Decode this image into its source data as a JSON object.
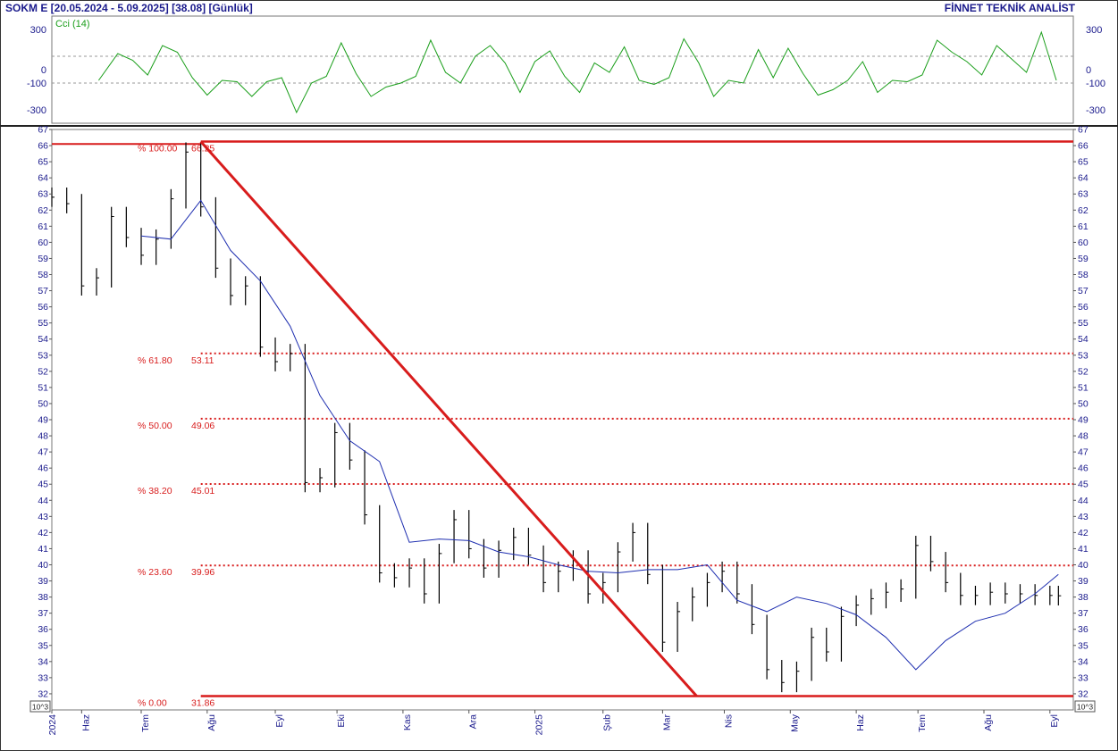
{
  "header": {
    "title": "SOKM  E  [20.05.2024 - 5.09.2025]  [38.08]  [Günlük]",
    "brand": "FİNNET TEKNİK ANALİST"
  },
  "colors": {
    "price_bars": "#000000",
    "moving_average": "#1f2fb0",
    "fibonacci": "#d81c1c",
    "cci": "#1a9e1a",
    "axis_text": "#1a1a8c"
  },
  "unit_badge": "10^3",
  "chart_data": [
    {
      "type": "line",
      "title": "Cci (14)",
      "ylim": [
        -400,
        400
      ],
      "yticks": [
        300,
        0,
        -100,
        -300
      ],
      "reference_lines": [
        100,
        -100
      ],
      "x": [
        "2024-06-11",
        "2024-06-20",
        "2024-06-27",
        "2024-07-04",
        "2024-07-11",
        "2024-07-18",
        "2024-07-25",
        "2024-08-01",
        "2024-08-08",
        "2024-08-15",
        "2024-08-22",
        "2024-08-29",
        "2024-09-05",
        "2024-09-12",
        "2024-09-19",
        "2024-09-26",
        "2024-10-03",
        "2024-10-10",
        "2024-10-17",
        "2024-10-24",
        "2024-10-31",
        "2024-11-07",
        "2024-11-14",
        "2024-11-21",
        "2024-11-28",
        "2024-12-05",
        "2024-12-12",
        "2024-12-19",
        "2024-12-26",
        "2025-01-02",
        "2025-01-09",
        "2025-01-16",
        "2025-01-23",
        "2025-01-30",
        "2025-02-06",
        "2025-02-13",
        "2025-02-20",
        "2025-02-27",
        "2025-03-06",
        "2025-03-13",
        "2025-03-20",
        "2025-03-27",
        "2025-04-03",
        "2025-04-10",
        "2025-04-17",
        "2025-04-24",
        "2025-05-01",
        "2025-05-08",
        "2025-05-15",
        "2025-05-22",
        "2025-05-29",
        "2025-06-05",
        "2025-06-12",
        "2025-06-19",
        "2025-06-26",
        "2025-07-03",
        "2025-07-10",
        "2025-07-17",
        "2025-07-24",
        "2025-07-31",
        "2025-08-07",
        "2025-08-14",
        "2025-08-21",
        "2025-08-28",
        "2025-09-04"
      ],
      "values": [
        -80,
        120,
        70,
        -40,
        180,
        130,
        -60,
        -190,
        -80,
        -90,
        -200,
        -90,
        -60,
        -320,
        -100,
        -50,
        200,
        -30,
        -200,
        -130,
        -100,
        -50,
        220,
        -20,
        -100,
        100,
        180,
        50,
        -170,
        60,
        140,
        -50,
        -170,
        50,
        -20,
        170,
        -80,
        -110,
        -60,
        230,
        50,
        -200,
        -80,
        -100,
        150,
        -60,
        160,
        -30,
        -190,
        -150,
        -80,
        60,
        -170,
        -80,
        -90,
        -40,
        220,
        130,
        60,
        -40,
        180,
        80,
        -20,
        280,
        -80
      ]
    },
    {
      "type": "line",
      "title": "",
      "ylabel": "",
      "ylim": [
        31,
        67
      ],
      "yticks": [
        32,
        33,
        34,
        35,
        36,
        37,
        38,
        39,
        40,
        41,
        42,
        43,
        44,
        45,
        46,
        47,
        48,
        49,
        50,
        51,
        52,
        53,
        54,
        55,
        56,
        57,
        58,
        59,
        60,
        61,
        62,
        63,
        64,
        65,
        66,
        67
      ],
      "x_ticks": [
        "2024",
        "Haz",
        "Tem",
        "Ağu",
        "Eyl",
        "Eki",
        "Kas",
        "Ara",
        "2025",
        "Şub",
        "Mar",
        "Nis",
        "May",
        "Haz",
        "Tem",
        "Ağu",
        "Eyl"
      ],
      "series": [
        {
          "style": "ohlc-bars",
          "x": [
            "2024-05-20",
            "2024-05-27",
            "2024-06-03",
            "2024-06-10",
            "2024-06-17",
            "2024-06-24",
            "2024-07-01",
            "2024-07-08",
            "2024-07-15",
            "2024-07-22",
            "2024-07-29",
            "2024-08-05",
            "2024-08-12",
            "2024-08-19",
            "2024-08-26",
            "2024-09-02",
            "2024-09-09",
            "2024-09-16",
            "2024-09-23",
            "2024-09-30",
            "2024-10-07",
            "2024-10-14",
            "2024-10-21",
            "2024-10-28",
            "2024-11-04",
            "2024-11-11",
            "2024-11-18",
            "2024-11-25",
            "2024-12-02",
            "2024-12-09",
            "2024-12-16",
            "2024-12-23",
            "2024-12-30",
            "2025-01-06",
            "2025-01-13",
            "2025-01-20",
            "2025-01-27",
            "2025-02-03",
            "2025-02-10",
            "2025-02-17",
            "2025-02-24",
            "2025-03-03",
            "2025-03-10",
            "2025-03-17",
            "2025-03-24",
            "2025-03-31",
            "2025-04-07",
            "2025-04-14",
            "2025-04-21",
            "2025-04-28",
            "2025-05-05",
            "2025-05-12",
            "2025-05-19",
            "2025-05-26",
            "2025-06-02",
            "2025-06-09",
            "2025-06-16",
            "2025-06-23",
            "2025-06-30",
            "2025-07-07",
            "2025-07-14",
            "2025-07-21",
            "2025-07-28",
            "2025-08-04",
            "2025-08-11",
            "2025-08-18",
            "2025-08-25",
            "2025-09-01",
            "2025-09-05"
          ],
          "close": [
            62.8,
            62.4,
            57.3,
            57.8,
            61.6,
            60.3,
            59.2,
            60.2,
            62.7,
            65.6,
            62.2,
            58.4,
            56.7,
            57.3,
            53.5,
            52.6,
            53.1,
            45.1,
            45.4,
            48.2,
            46.5,
            43.1,
            39.5,
            39.2,
            39.8,
            38.2,
            40.7,
            42.8,
            41.0,
            39.8,
            40.9,
            41.7,
            40.6,
            38.9,
            39.6,
            40.3,
            38.2,
            38.9,
            40.8,
            42.0,
            39.4,
            35.2,
            37.1,
            38.0,
            38.9,
            39.6,
            38.2,
            36.3,
            33.5,
            32.7,
            33.4,
            35.5,
            34.6,
            36.8,
            37.5,
            37.9,
            38.3,
            38.5,
            41.2,
            40.2,
            38.9,
            38.1,
            38.1,
            38.3,
            38.2,
            38.2,
            38.1,
            38.1,
            38.08
          ]
        },
        {
          "name": "",
          "style": "moving-average",
          "x": [
            "2024-07-01",
            "2024-07-15",
            "2024-07-29",
            "2024-08-12",
            "2024-08-26",
            "2024-09-09",
            "2024-09-23",
            "2024-10-07",
            "2024-10-21",
            "2024-11-04",
            "2024-11-18",
            "2024-12-02",
            "2024-12-16",
            "2024-12-30",
            "2025-01-13",
            "2025-01-27",
            "2025-02-10",
            "2025-02-24",
            "2025-03-10",
            "2025-03-24",
            "2025-04-07",
            "2025-04-21",
            "2025-05-05",
            "2025-05-19",
            "2025-06-02",
            "2025-06-16",
            "2025-06-30",
            "2025-07-14",
            "2025-07-28",
            "2025-08-11",
            "2025-08-25",
            "2025-09-05"
          ],
          "values": [
            60.4,
            60.2,
            62.6,
            59.5,
            57.6,
            54.8,
            50.5,
            47.7,
            46.4,
            41.4,
            41.6,
            41.5,
            40.8,
            40.5,
            40.0,
            39.6,
            39.5,
            39.7,
            39.7,
            40.0,
            37.8,
            37.1,
            38.0,
            37.6,
            36.9,
            35.5,
            33.5,
            35.3,
            36.5,
            37.0,
            38.2,
            39.4
          ]
        }
      ],
      "trend_line": {
        "from": {
          "x": "2024-07-29",
          "y": 66.25
        },
        "to": {
          "x": "2025-03-19",
          "y": 31.86
        }
      },
      "fibonacci": [
        {
          "percent": "% 100.00",
          "value": "66.25",
          "level": 66.25
        },
        {
          "percent": "% 61.80",
          "value": "53.11",
          "level": 53.11
        },
        {
          "percent": "% 50.00",
          "value": "49.06",
          "level": 49.06
        },
        {
          "percent": "% 38.20",
          "value": "45.01",
          "level": 45.01
        },
        {
          "percent": "% 23.60",
          "value": "39.96",
          "level": 39.96
        },
        {
          "percent": "% 0.00",
          "value": "31.86",
          "level": 31.86
        }
      ]
    }
  ]
}
